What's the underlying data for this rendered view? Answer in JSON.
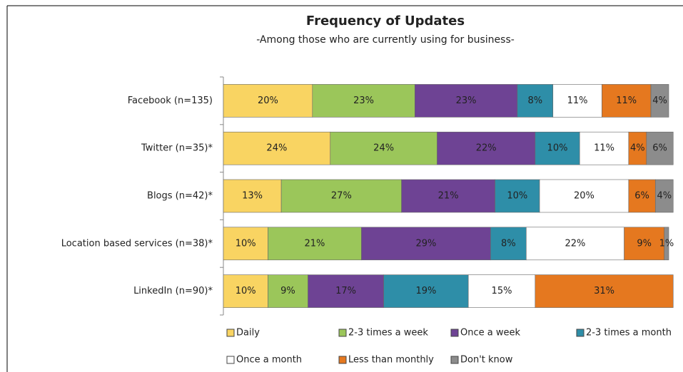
{
  "chart_data": {
    "type": "stacked_bar_horizontal",
    "title": "Frequency of Updates",
    "subtitle": "-Among those who are currently using for business-",
    "categories": [
      "Facebook (n=135)",
      "Twitter (n=35)*",
      "Blogs (n=42)*",
      "Location based services (n=38)*",
      "LinkedIn (n=90)*"
    ],
    "series": [
      {
        "name": "Daily",
        "color": "#f9d462",
        "values": [
          20,
          24,
          13,
          10,
          10
        ],
        "value_labels": [
          "20%",
          "24%",
          "13%",
          "10%",
          "10%"
        ]
      },
      {
        "name": "2-3 times a week",
        "color": "#9bc65a",
        "values": [
          23,
          24,
          27,
          21,
          9
        ],
        "value_labels": [
          "23%",
          "24%",
          "27%",
          "21%",
          "9%"
        ]
      },
      {
        "name": "Once a week",
        "color": "#6e4394",
        "values": [
          23,
          22,
          21,
          29,
          17
        ],
        "value_labels": [
          "23%",
          "22%",
          "21%",
          "29%",
          "17%"
        ]
      },
      {
        "name": "2-3 times a month",
        "color": "#2e8ea8",
        "values": [
          8,
          10,
          10,
          8,
          19
        ],
        "value_labels": [
          "8%",
          "10%",
          "10%",
          "8%",
          "19%"
        ]
      },
      {
        "name": "Once a month",
        "color": "#ffffff",
        "values": [
          11,
          11,
          20,
          22,
          15
        ],
        "value_labels": [
          "11%",
          "11%",
          "20%",
          "22%",
          "15%"
        ]
      },
      {
        "name": "Less than monthly",
        "color": "#e5781f",
        "values": [
          11,
          4,
          6,
          9,
          31
        ],
        "value_labels": [
          "11%",
          "4%",
          "6%",
          "9%",
          "31%"
        ]
      },
      {
        "name": "Don't know",
        "color": "#8c8c8c",
        "values": [
          4,
          6,
          4,
          1,
          null
        ],
        "value_labels": [
          "4%",
          "6%",
          "4%",
          "1%",
          null
        ]
      }
    ],
    "legend": "bottom"
  }
}
